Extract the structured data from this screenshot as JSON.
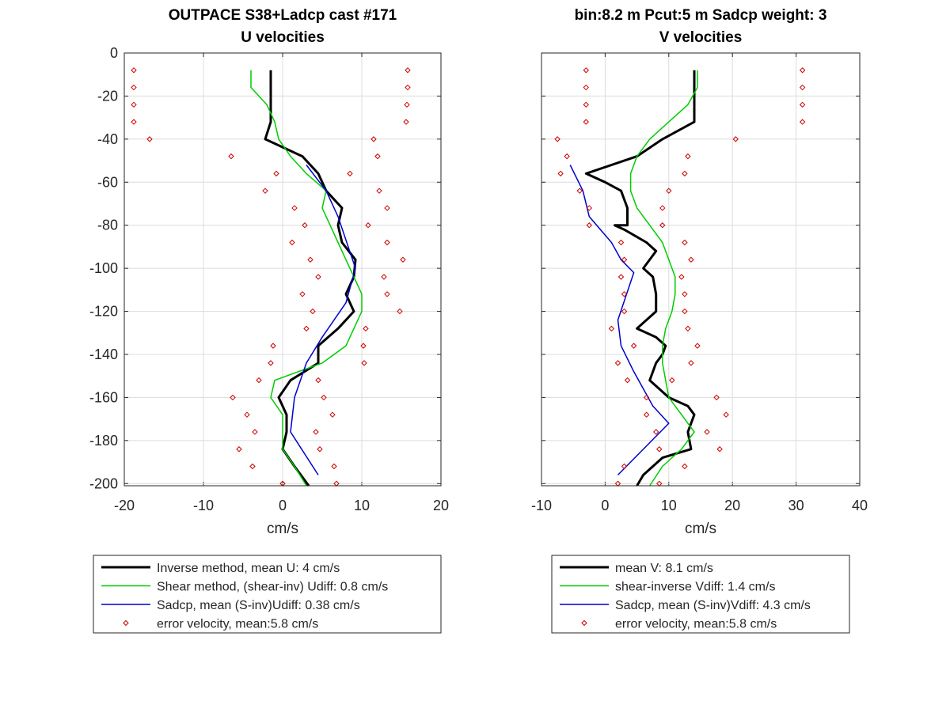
{
  "chart_data": [
    {
      "type": "line",
      "title": "OUTPACE S38+Ladcp cast #171",
      "subtitle": "U velocities",
      "xlabel": "cm/s",
      "ylabel": "",
      "xlim": [
        -20,
        20
      ],
      "ylim": [
        -201,
        0
      ],
      "xticks": [
        "-20",
        "-10",
        "0",
        "10",
        "20"
      ],
      "yticks": [
        "0",
        "-20",
        "-40",
        "-60",
        "-80",
        "-100",
        "-120",
        "-140",
        "-160",
        "-180",
        "-200"
      ],
      "grid": true,
      "legend_placement": "below",
      "series": [
        {
          "name": "Inverse method, mean U:  4 cm/s",
          "color": "#000000",
          "style": "line-thick",
          "points": [
            [
              -1.5,
              -8
            ],
            [
              -1.5,
              -32
            ],
            [
              -2.2,
              -40
            ],
            [
              2.5,
              -48
            ],
            [
              4.5,
              -56
            ],
            [
              5.5,
              -64
            ],
            [
              7.5,
              -72
            ],
            [
              7,
              -80
            ],
            [
              7.5,
              -88
            ],
            [
              9.2,
              -96
            ],
            [
              9,
              -104
            ],
            [
              8,
              -112
            ],
            [
              9,
              -120
            ],
            [
              7,
              -128
            ],
            [
              4.5,
              -136
            ],
            [
              4.5,
              -144
            ],
            [
              1,
              -152
            ],
            [
              -0.5,
              -160
            ],
            [
              0.5,
              -168
            ],
            [
              0.5,
              -176
            ],
            [
              0,
              -184
            ],
            [
              1.5,
              -192
            ],
            [
              3.3,
              -201
            ]
          ]
        },
        {
          "name": "Shear method, (shear-inv)  Udiff:  0.8 cm/s",
          "color": "#00cc00",
          "style": "line",
          "points": [
            [
              -4,
              -8
            ],
            [
              -4,
              -16
            ],
            [
              -2,
              -24
            ],
            [
              -1,
              -32
            ],
            [
              -0.5,
              -40
            ],
            [
              1,
              -48
            ],
            [
              3,
              -56
            ],
            [
              5.5,
              -64
            ],
            [
              5,
              -72
            ],
            [
              6,
              -80
            ],
            [
              7,
              -88
            ],
            [
              8,
              -96
            ],
            [
              9,
              -104
            ],
            [
              10,
              -112
            ],
            [
              10,
              -120
            ],
            [
              9,
              -128
            ],
            [
              8,
              -136
            ],
            [
              5,
              -144
            ],
            [
              -1,
              -152
            ],
            [
              -1.5,
              -160
            ],
            [
              0,
              -168
            ],
            [
              0,
              -176
            ],
            [
              0,
              -184
            ],
            [
              1.5,
              -192
            ],
            [
              3,
              -201
            ]
          ]
        },
        {
          "name": "Sadcp, mean (S-inv)Udiff: 0.38 cm/s",
          "color": "#0000cc",
          "style": "line",
          "points": [
            [
              3,
              -52
            ],
            [
              5.5,
              -64
            ],
            [
              7,
              -76
            ],
            [
              9.2,
              -100
            ],
            [
              8,
              -116
            ],
            [
              5,
              -132
            ],
            [
              3,
              -144
            ],
            [
              1.5,
              -160
            ],
            [
              1,
              -176
            ],
            [
              4.5,
              -196
            ]
          ]
        },
        {
          "name": "error velocity, mean:5.8 cm/s",
          "color": "#cc0000",
          "style": "marker",
          "points": [
            [
              -18.8,
              -8
            ],
            [
              15.8,
              -8
            ],
            [
              -18.8,
              -16
            ],
            [
              15.8,
              -16
            ],
            [
              -18.8,
              -24
            ],
            [
              15.7,
              -24
            ],
            [
              -18.8,
              -32
            ],
            [
              15.6,
              -32
            ],
            [
              -16.8,
              -40
            ],
            [
              11.5,
              -40
            ],
            [
              -6.5,
              -48
            ],
            [
              12,
              -48
            ],
            [
              -0.8,
              -56
            ],
            [
              8.5,
              -56
            ],
            [
              -2.2,
              -64
            ],
            [
              12.2,
              -64
            ],
            [
              1.5,
              -72
            ],
            [
              13.2,
              -72
            ],
            [
              2.8,
              -80
            ],
            [
              10.8,
              -80
            ],
            [
              1.2,
              -88
            ],
            [
              13.2,
              -88
            ],
            [
              3.5,
              -96
            ],
            [
              15.2,
              -96
            ],
            [
              4.5,
              -104
            ],
            [
              12.8,
              -104
            ],
            [
              2.5,
              -112
            ],
            [
              13.2,
              -112
            ],
            [
              3.8,
              -120
            ],
            [
              14.8,
              -120
            ],
            [
              3,
              -128
            ],
            [
              10.5,
              -128
            ],
            [
              -1.2,
              -136
            ],
            [
              10.2,
              -136
            ],
            [
              -1.5,
              -144
            ],
            [
              10.3,
              -144
            ],
            [
              -3,
              -152
            ],
            [
              4.5,
              -152
            ],
            [
              -6.3,
              -160
            ],
            [
              5.2,
              -160
            ],
            [
              -4.5,
              -168
            ],
            [
              6.3,
              -168
            ],
            [
              -3.5,
              -176
            ],
            [
              4.2,
              -176
            ],
            [
              -5.5,
              -184
            ],
            [
              4.7,
              -184
            ],
            [
              -3.8,
              -192
            ],
            [
              6.5,
              -192
            ],
            [
              0,
              -200
            ],
            [
              6.8,
              -200
            ]
          ]
        }
      ]
    },
    {
      "type": "line",
      "title": "bin:8.2 m  Pcut:5 m  Sadcp weight: 3",
      "subtitle": "V velocities",
      "xlabel": "cm/s",
      "ylabel": "",
      "xlim": [
        -10,
        40
      ],
      "ylim": [
        -201,
        0
      ],
      "xticks": [
        "-10",
        "0",
        "10",
        "20",
        "30",
        "40"
      ],
      "grid": true,
      "legend_placement": "below",
      "series": [
        {
          "name": "mean V:  8.1 cm/s",
          "color": "#000000",
          "style": "line-thick",
          "points": [
            [
              14,
              -8
            ],
            [
              14,
              -32
            ],
            [
              9,
              -40
            ],
            [
              5,
              -48
            ],
            [
              -3,
              -56
            ],
            [
              0,
              -60
            ],
            [
              2.5,
              -64
            ],
            [
              3.5,
              -72
            ],
            [
              3.5,
              -80
            ],
            [
              1.5,
              -80
            ],
            [
              3,
              -82
            ],
            [
              6.5,
              -88
            ],
            [
              8,
              -92
            ],
            [
              6,
              -100
            ],
            [
              7.5,
              -104
            ],
            [
              8,
              -112
            ],
            [
              8,
              -120
            ],
            [
              5,
              -128
            ],
            [
              8,
              -132
            ],
            [
              9.5,
              -136
            ],
            [
              9,
              -140
            ],
            [
              8,
              -144
            ],
            [
              7,
              -152
            ],
            [
              10,
              -160
            ],
            [
              13,
              -164
            ],
            [
              14,
              -168
            ],
            [
              13,
              -176
            ],
            [
              13.5,
              -184
            ],
            [
              9,
              -188
            ],
            [
              6,
              -196
            ],
            [
              5,
              -201
            ]
          ]
        },
        {
          "name": "shear-inverse Vdiff:  1.4 cm/s",
          "color": "#00cc00",
          "style": "line",
          "points": [
            [
              14.5,
              -8
            ],
            [
              14.5,
              -16
            ],
            [
              13,
              -24
            ],
            [
              10,
              -32
            ],
            [
              7,
              -40
            ],
            [
              5,
              -48
            ],
            [
              4,
              -56
            ],
            [
              4,
              -64
            ],
            [
              5,
              -72
            ],
            [
              7,
              -80
            ],
            [
              9,
              -88
            ],
            [
              10,
              -96
            ],
            [
              11,
              -104
            ],
            [
              11,
              -112
            ],
            [
              10.5,
              -120
            ],
            [
              9.5,
              -128
            ],
            [
              9,
              -136
            ],
            [
              9,
              -144
            ],
            [
              9.5,
              -152
            ],
            [
              10,
              -160
            ],
            [
              12,
              -168
            ],
            [
              14,
              -176
            ],
            [
              12,
              -184
            ],
            [
              9,
              -192
            ],
            [
              7,
              -201
            ]
          ]
        },
        {
          "name": "Sadcp, mean (S-inv)Vdiff: 4.3 cm/s",
          "color": "#0000cc",
          "style": "line",
          "points": [
            [
              -5.5,
              -52
            ],
            [
              -3.5,
              -64
            ],
            [
              -2.5,
              -76
            ],
            [
              1,
              -88
            ],
            [
              2.5,
              -96
            ],
            [
              4.5,
              -102
            ],
            [
              2,
              -124
            ],
            [
              2.5,
              -136
            ],
            [
              4.5,
              -148
            ],
            [
              7.5,
              -164
            ],
            [
              10,
              -172
            ],
            [
              2,
              -196
            ]
          ]
        },
        {
          "name": "error velocity, mean:5.8 cm/s",
          "color": "#cc0000",
          "style": "marker",
          "points": [
            [
              -3,
              -8
            ],
            [
              31,
              -8
            ],
            [
              -3,
              -16
            ],
            [
              31,
              -16
            ],
            [
              -3,
              -24
            ],
            [
              31,
              -24
            ],
            [
              -3,
              -32
            ],
            [
              31,
              -32
            ],
            [
              -7.5,
              -40
            ],
            [
              20.5,
              -40
            ],
            [
              -6,
              -48
            ],
            [
              13,
              -48
            ],
            [
              -7,
              -56
            ],
            [
              12.5,
              -56
            ],
            [
              -4,
              -64
            ],
            [
              10,
              -64
            ],
            [
              -2.5,
              -72
            ],
            [
              9,
              -72
            ],
            [
              -2.5,
              -80
            ],
            [
              9,
              -80
            ],
            [
              2.5,
              -88
            ],
            [
              12.5,
              -88
            ],
            [
              3,
              -96
            ],
            [
              13.5,
              -96
            ],
            [
              2.5,
              -104
            ],
            [
              12,
              -104
            ],
            [
              3,
              -112
            ],
            [
              12.5,
              -112
            ],
            [
              3,
              -120
            ],
            [
              12.5,
              -120
            ],
            [
              1,
              -128
            ],
            [
              13,
              -128
            ],
            [
              4.5,
              -136
            ],
            [
              14.5,
              -136
            ],
            [
              2,
              -144
            ],
            [
              13.5,
              -144
            ],
            [
              3.5,
              -152
            ],
            [
              10.5,
              -152
            ],
            [
              6.5,
              -160
            ],
            [
              17.5,
              -160
            ],
            [
              6.5,
              -168
            ],
            [
              19,
              -168
            ],
            [
              8,
              -176
            ],
            [
              16,
              -176
            ],
            [
              8.5,
              -184
            ],
            [
              18,
              -184
            ],
            [
              3,
              -192
            ],
            [
              12.5,
              -192
            ],
            [
              2,
              -200
            ],
            [
              8.5,
              -200
            ]
          ]
        }
      ]
    }
  ]
}
